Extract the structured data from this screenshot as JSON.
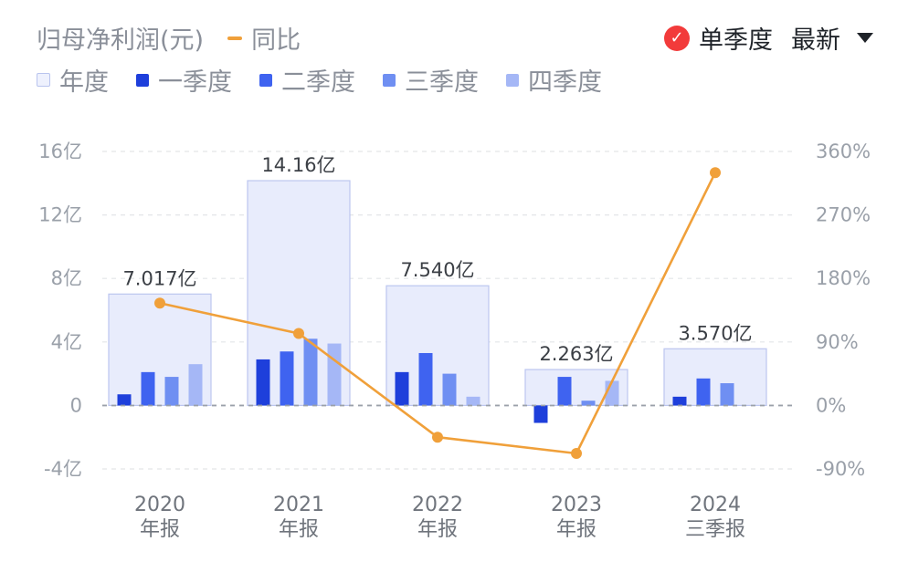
{
  "header": {
    "title": "归母净利润(元)",
    "yoy_legend": "同比"
  },
  "controls": {
    "single_quarter_label": "单季度",
    "latest_label": "最新",
    "single_quarter_checked": true
  },
  "legend": [
    {
      "label": "年度",
      "color": "#eef1fd"
    },
    {
      "label": "一季度",
      "color": "#1e3fdb"
    },
    {
      "label": "二季度",
      "color": "#3f63f0"
    },
    {
      "label": "三季度",
      "color": "#6f8ff2"
    },
    {
      "label": "四季度",
      "color": "#a5b7f6"
    }
  ],
  "colors": {
    "annual_fill": "#e8ecfc",
    "annual_stroke": "#bcc6ef",
    "yoy_line": "#f0a03a",
    "grid": "#e3e5e8",
    "zero_line": "#9aa0a9"
  },
  "chart_data": {
    "type": "bar",
    "categories": [
      [
        "2020",
        "年报"
      ],
      [
        "2021",
        "年报"
      ],
      [
        "2022",
        "年报"
      ],
      [
        "2023",
        "年报"
      ],
      [
        "2024",
        "三季报"
      ]
    ],
    "annual": {
      "name": "年度",
      "values": [
        7.017,
        14.16,
        7.54,
        2.263,
        3.57
      ],
      "labels": [
        "7.017亿",
        "14.16亿",
        "7.540亿",
        "2.263亿",
        "3.570亿"
      ]
    },
    "quarters": [
      {
        "name": "一季度",
        "values": [
          0.7,
          2.9,
          2.1,
          -1.1,
          0.55
        ]
      },
      {
        "name": "二季度",
        "values": [
          2.1,
          3.4,
          3.3,
          1.8,
          1.7
        ]
      },
      {
        "name": "三季度",
        "values": [
          1.8,
          4.2,
          2.0,
          0.3,
          1.4
        ]
      },
      {
        "name": "四季度",
        "values": [
          2.6,
          3.9,
          0.55,
          1.55,
          null
        ]
      }
    ],
    "yoy": {
      "name": "同比",
      "values": [
        145,
        102,
        -45,
        -68,
        330
      ]
    },
    "y_left": {
      "range": [
        -4,
        16
      ],
      "ticks": [
        -4,
        0,
        4,
        8,
        12,
        16
      ],
      "tick_labels": [
        "-4亿",
        "0",
        "4亿",
        "8亿",
        "12亿",
        "16亿"
      ]
    },
    "y_right": {
      "range": [
        -90,
        360
      ],
      "ticks": [
        -90,
        0,
        90,
        180,
        270,
        360
      ],
      "tick_labels": [
        "-90%",
        "0%",
        "90%",
        "180%",
        "270%",
        "360%"
      ]
    },
    "grid": true,
    "legend_position": "top-left"
  }
}
